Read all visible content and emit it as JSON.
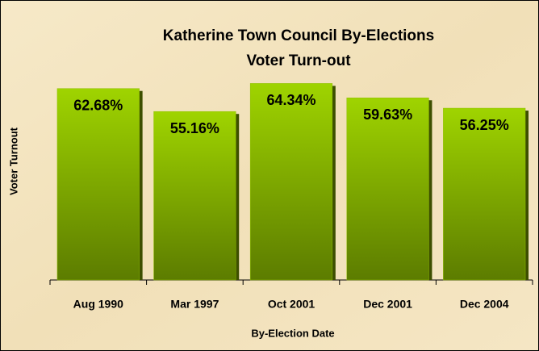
{
  "chart_data": {
    "type": "bar",
    "title": "Katherine Town Council By-Elections",
    "subtitle": "Voter Turn-out",
    "x_label": "By-Election Date",
    "y_label": "Voter Turnout",
    "categories": [
      "Aug 1990",
      "Mar 1997",
      "Oct 2001",
      "Dec 2001",
      "Dec 2004"
    ],
    "values": [
      62.68,
      55.16,
      64.34,
      59.63,
      56.25
    ],
    "value_labels": [
      "62.68%",
      "55.16%",
      "64.34%",
      "59.63%",
      "56.25%"
    ],
    "color": "#8fbf00",
    "ylim": [
      0,
      70
    ],
    "grid": false
  }
}
